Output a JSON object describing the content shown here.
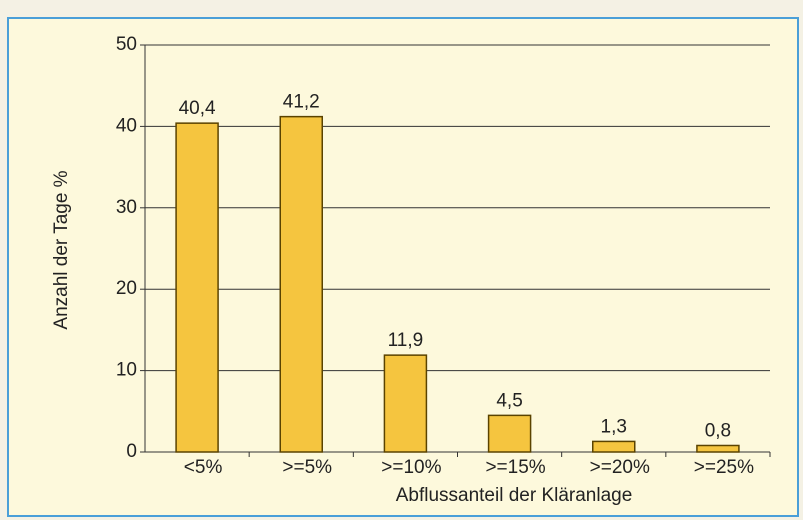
{
  "chart_data": {
    "type": "bar",
    "categories": [
      "<5%",
      ">=5%",
      ">=10%",
      ">=15%",
      ">=20%",
      ">=25%"
    ],
    "values": [
      40.4,
      41.2,
      11.9,
      4.5,
      1.3,
      0.8
    ],
    "value_labels": [
      "40,4",
      "41,2",
      "11,9",
      "4,5",
      "1,3",
      "0,8"
    ],
    "color": "#f5c53f",
    "xlabel": "Abflussanteil der Kläranlage",
    "ylabel": "Anzahl der Tage %",
    "ylim": [
      0,
      50
    ],
    "yticks": [
      0,
      10,
      20,
      30,
      40,
      50
    ],
    "grid": true
  }
}
